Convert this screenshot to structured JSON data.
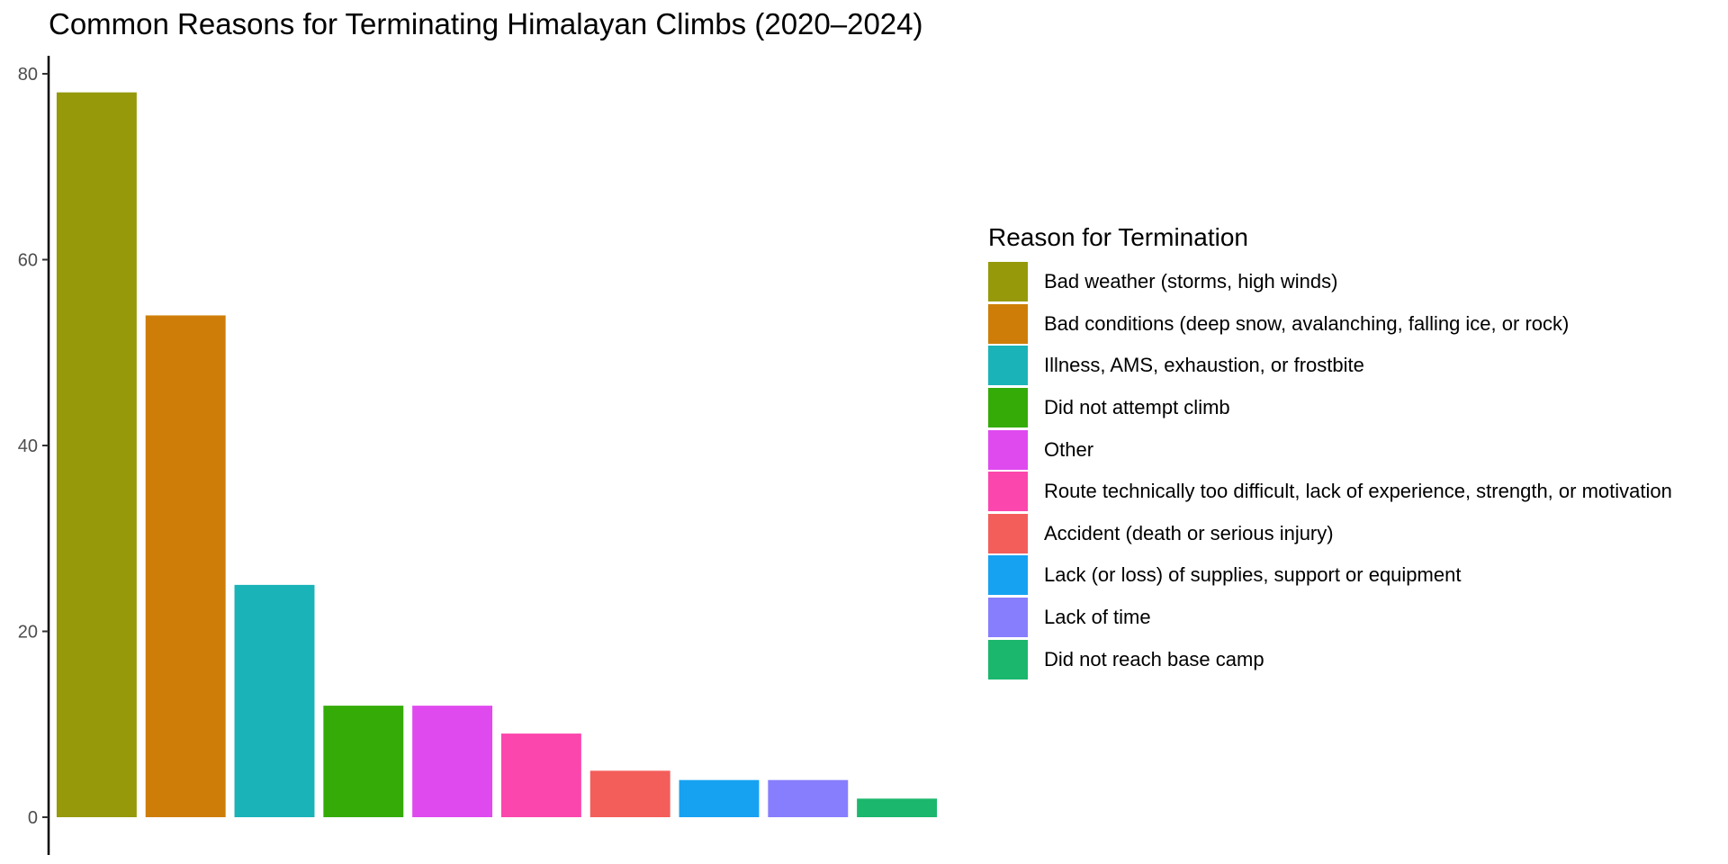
{
  "chart_data": {
    "type": "bar",
    "title": "Common Reasons for Terminating Himalayan Climbs (2020–2024)",
    "xlabel": "",
    "ylabel": "",
    "ylim": [
      0,
      80
    ],
    "yticks": [
      0,
      20,
      40,
      60,
      80
    ],
    "grid": false,
    "legend_title": "Reason for Termination",
    "legend_position": "right",
    "categories": [
      "Bad weather (storms, high winds)",
      "Bad conditions (deep snow, avalanching, falling ice, or rock)",
      "Illness, AMS, exhaustion, or frostbite",
      "Did not attempt climb",
      "Other",
      "Route technically too difficult, lack of experience, strength, or motivation",
      "Accident (death or serious injury)",
      "Lack (or loss) of supplies, support or equipment",
      "Lack of time",
      "Did not reach base camp"
    ],
    "values": [
      78,
      54,
      25,
      12,
      12,
      9,
      5,
      4,
      4,
      2
    ],
    "colors": [
      "#95990A",
      "#CE7E08",
      "#19B3B8",
      "#35AB08",
      "#DF4AEF",
      "#FB46AD",
      "#F35E5B",
      "#17A2F1",
      "#877EFD",
      "#1BB76D"
    ]
  }
}
